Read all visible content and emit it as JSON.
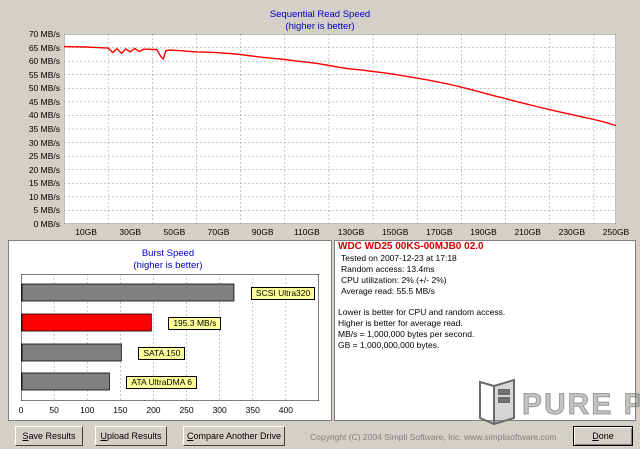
{
  "sequential_chart": {
    "title": "Sequential Read Speed",
    "subtitle": "(higher is better)",
    "y_ticks": [
      "70 MB/s",
      "65 MB/s",
      "60 MB/s",
      "55 MB/s",
      "50 MB/s",
      "45 MB/s",
      "40 MB/s",
      "35 MB/s",
      "30 MB/s",
      "25 MB/s",
      "20 MB/s",
      "15 MB/s",
      "10 MB/s",
      "5 MB/s",
      "0 MB/s"
    ],
    "x_ticks": [
      "10GB",
      "30GB",
      "50GB",
      "70GB",
      "90GB",
      "110GB",
      "130GB",
      "150GB",
      "170GB",
      "190GB",
      "210GB",
      "230GB",
      "250GB"
    ],
    "line_color": "#ff0000"
  },
  "burst_chart": {
    "title": "Burst Speed",
    "subtitle": "(higher is better)",
    "x_ticks": [
      "0",
      "50",
      "100",
      "150",
      "200",
      "250",
      "300",
      "350",
      "400"
    ],
    "bars": [
      {
        "label": "SCSI Ultra320",
        "color": "#808080"
      },
      {
        "label": "195.3 MB/s",
        "color": "#ff0000"
      },
      {
        "label": "SATA 150",
        "color": "#808080"
      },
      {
        "label": "ATA UltraDMA 6",
        "color": "#808080"
      }
    ]
  },
  "chart_data": [
    {
      "type": "line",
      "title": "Sequential Read Speed",
      "subtitle": "(higher is better)",
      "xlabel": "",
      "ylabel": "",
      "xlim": [
        0,
        250
      ],
      "ylim": [
        0,
        70
      ],
      "x_unit": "GB",
      "y_unit": "MB/s",
      "grid": true,
      "series": [
        {
          "x": [
            0,
            5,
            10,
            15,
            20,
            22,
            24,
            26,
            28,
            30,
            32,
            34,
            36,
            38,
            40,
            42,
            44,
            45,
            46,
            48,
            50,
            52,
            55,
            60,
            65,
            70,
            75,
            80,
            85,
            90,
            95,
            100,
            105,
            110,
            115,
            120,
            125,
            130,
            135,
            140,
            145,
            150,
            155,
            160,
            165,
            170,
            175,
            180,
            185,
            190,
            195,
            200,
            205,
            210,
            215,
            220,
            225,
            230,
            235,
            240,
            245,
            250
          ],
          "y": [
            65.4,
            65.3,
            65.2,
            65,
            64.8,
            63.2,
            64.6,
            62.9,
            64.5,
            63.4,
            64.7,
            63.5,
            64.4,
            64.4,
            64.3,
            64.3,
            61.5,
            60.8,
            63.8,
            64.1,
            64,
            63.9,
            63.7,
            63.4,
            63.3,
            63.1,
            62.8,
            62.4,
            61.9,
            61.4,
            61,
            60.6,
            60.1,
            59.6,
            59.1,
            58.4,
            57.7,
            57.1,
            56.7,
            56.2,
            55.7,
            55.1,
            54.4,
            53.7,
            53,
            52.2,
            51.4,
            50.4,
            49.4,
            48.3,
            47.2,
            46.2,
            45.1,
            44.1,
            43.1,
            42.1,
            41.2,
            40.3,
            39.4,
            38.5,
            37.5,
            36.2
          ]
        }
      ]
    },
    {
      "type": "bar",
      "orientation": "horizontal",
      "title": "Burst Speed",
      "subtitle": "(higher is better)",
      "xlim": [
        0,
        450
      ],
      "categories": [
        "SCSI Ultra320",
        "195.3 MB/s",
        "SATA 150",
        "ATA UltraDMA 6"
      ],
      "values": [
        320,
        195.3,
        150,
        132
      ],
      "grid": true
    }
  ],
  "drive_info": {
    "name": "WDC WD25 00KS-00MJB0 02.0",
    "tested_on": "Tested on 2007-12-23 at 17:18",
    "random_access": "Random access: 13.4ms",
    "cpu_utilization": "CPU utilization: 2% (+/- 2%)",
    "average_read": "Average read: 55.5 MB/s",
    "note_1": "Lower is better for CPU and random access.",
    "note_2": "Higher is better for average read.",
    "note_3": "MB/s = 1,000,000 bytes per second.",
    "note_4": "GB = 1,000,000,000 bytes."
  },
  "buttons": {
    "save_prefix": "S",
    "save_rest": "ave Results",
    "upload_prefix": "U",
    "upload_rest": "pload Results",
    "compare_prefix": "C",
    "compare_rest": "ompare Another Drive",
    "done_prefix": "D",
    "done_rest": "one"
  },
  "footer": {
    "copyright": "Copyright (C) 2004 Simpli Software, Inc. www.simplisoftware.com"
  },
  "watermark": {
    "text": "PURE PC",
    "icon": "pc-case-logo"
  }
}
